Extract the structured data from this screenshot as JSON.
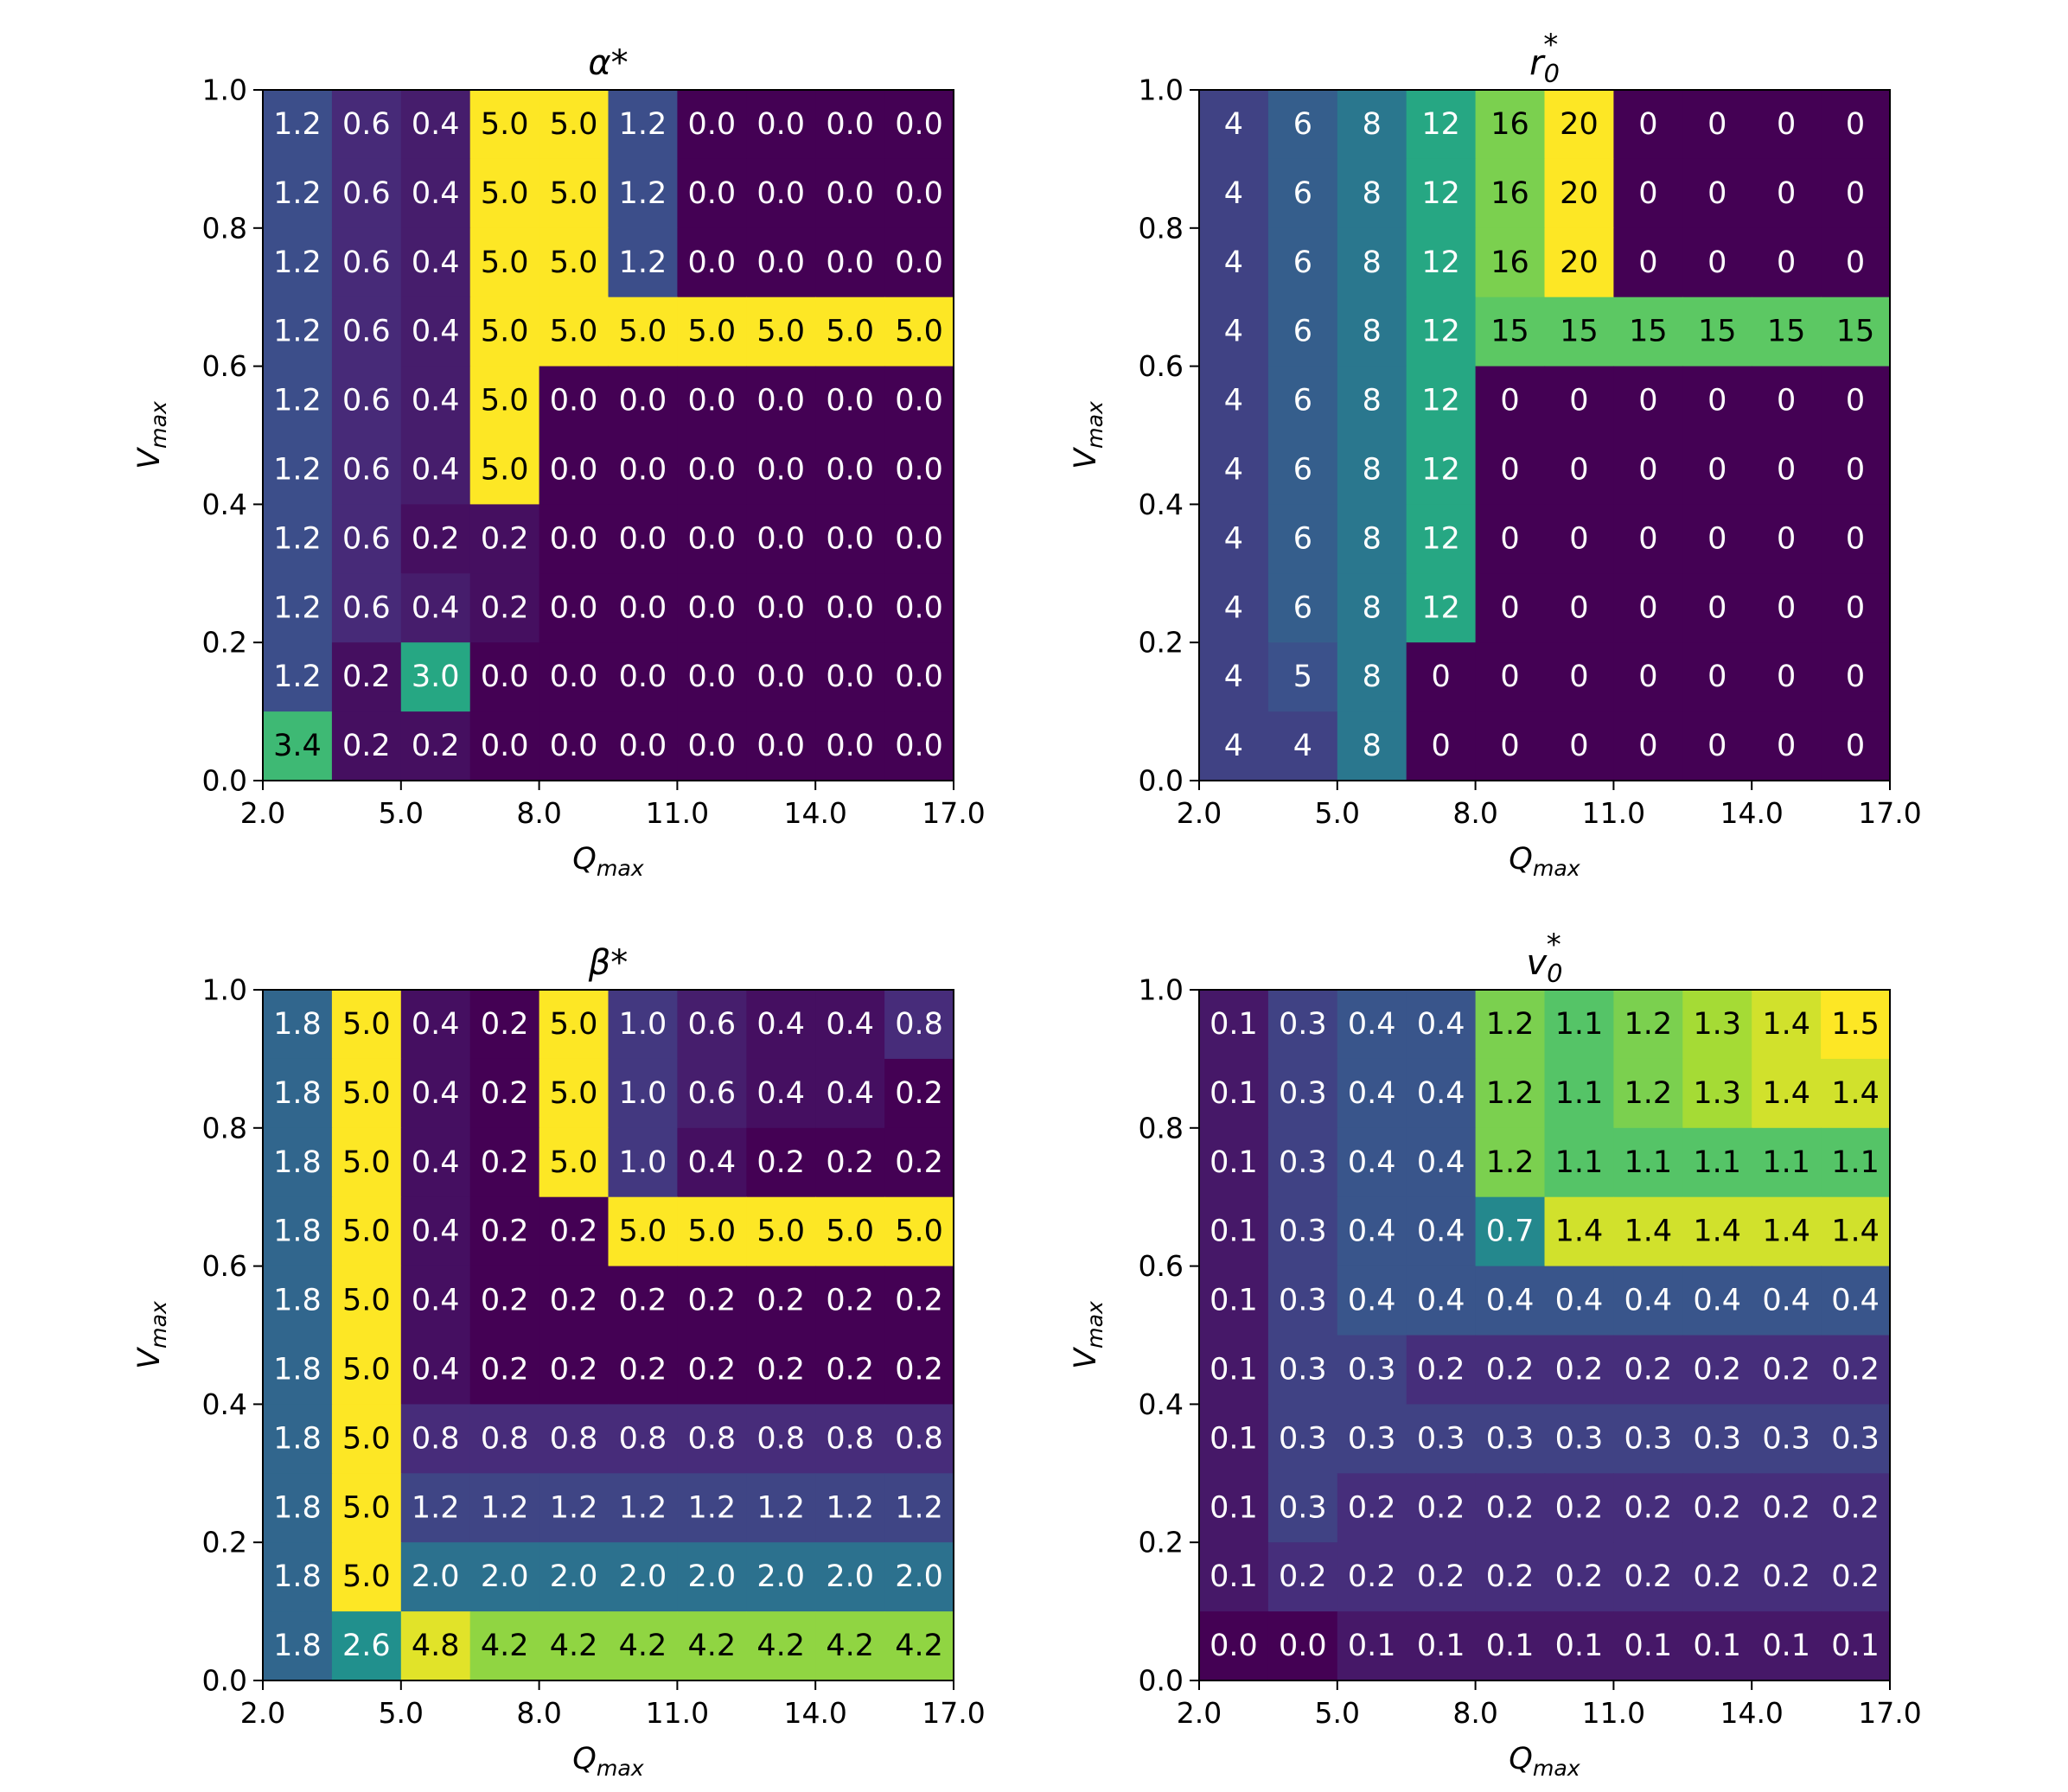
{
  "chart_data": [
    {
      "type": "heatmap",
      "title": "α*",
      "xlabel": "Q",
      "xlabel_sub": "max",
      "ylabel": "V",
      "ylabel_sub": "max",
      "x_range": [
        2.0,
        17.0
      ],
      "y_range": [
        0.0,
        1.0
      ],
      "x_ticks": [
        "2.0",
        "5.0",
        "8.0",
        "11.0",
        "14.0",
        "17.0"
      ],
      "y_ticks": [
        "0.0",
        "0.2",
        "0.4",
        "0.6",
        "0.8",
        "1.0"
      ],
      "vmin": 0.0,
      "vmax": 5.0,
      "colormap": "viridis",
      "rows_top_to_bottom": [
        [
          "1.2",
          "0.6",
          "0.4",
          "5.0",
          "5.0",
          "1.2",
          "0.0",
          "0.0",
          "0.0",
          "0.0"
        ],
        [
          "1.2",
          "0.6",
          "0.4",
          "5.0",
          "5.0",
          "1.2",
          "0.0",
          "0.0",
          "0.0",
          "0.0"
        ],
        [
          "1.2",
          "0.6",
          "0.4",
          "5.0",
          "5.0",
          "1.2",
          "0.0",
          "0.0",
          "0.0",
          "0.0"
        ],
        [
          "1.2",
          "0.6",
          "0.4",
          "5.0",
          "5.0",
          "5.0",
          "5.0",
          "5.0",
          "5.0",
          "5.0"
        ],
        [
          "1.2",
          "0.6",
          "0.4",
          "5.0",
          "0.0",
          "0.0",
          "0.0",
          "0.0",
          "0.0",
          "0.0"
        ],
        [
          "1.2",
          "0.6",
          "0.4",
          "5.0",
          "0.0",
          "0.0",
          "0.0",
          "0.0",
          "0.0",
          "0.0"
        ],
        [
          "1.2",
          "0.6",
          "0.2",
          "0.2",
          "0.0",
          "0.0",
          "0.0",
          "0.0",
          "0.0",
          "0.0"
        ],
        [
          "1.2",
          "0.6",
          "0.4",
          "0.2",
          "0.0",
          "0.0",
          "0.0",
          "0.0",
          "0.0",
          "0.0"
        ],
        [
          "1.2",
          "0.2",
          "3.0",
          "0.0",
          "0.0",
          "0.0",
          "0.0",
          "0.0",
          "0.0",
          "0.0"
        ],
        [
          "3.4",
          "0.2",
          "0.2",
          "0.0",
          "0.0",
          "0.0",
          "0.0",
          "0.0",
          "0.0",
          "0.0"
        ]
      ]
    },
    {
      "type": "heatmap",
      "title": "r",
      "title_sub": "0",
      "title_sup": "*",
      "xlabel": "Q",
      "xlabel_sub": "max",
      "ylabel": "V",
      "ylabel_sub": "max",
      "x_range": [
        2.0,
        17.0
      ],
      "y_range": [
        0.0,
        1.0
      ],
      "x_ticks": [
        "2.0",
        "5.0",
        "8.0",
        "11.0",
        "14.0",
        "17.0"
      ],
      "y_ticks": [
        "0.0",
        "0.2",
        "0.4",
        "0.6",
        "0.8",
        "1.0"
      ],
      "vmin": 0,
      "vmax": 20,
      "colormap": "viridis",
      "rows_top_to_bottom": [
        [
          "4",
          "6",
          "8",
          "12",
          "16",
          "20",
          "0",
          "0",
          "0",
          "0"
        ],
        [
          "4",
          "6",
          "8",
          "12",
          "16",
          "20",
          "0",
          "0",
          "0",
          "0"
        ],
        [
          "4",
          "6",
          "8",
          "12",
          "16",
          "20",
          "0",
          "0",
          "0",
          "0"
        ],
        [
          "4",
          "6",
          "8",
          "12",
          "15",
          "15",
          "15",
          "15",
          "15",
          "15"
        ],
        [
          "4",
          "6",
          "8",
          "12",
          "0",
          "0",
          "0",
          "0",
          "0",
          "0"
        ],
        [
          "4",
          "6",
          "8",
          "12",
          "0",
          "0",
          "0",
          "0",
          "0",
          "0"
        ],
        [
          "4",
          "6",
          "8",
          "12",
          "0",
          "0",
          "0",
          "0",
          "0",
          "0"
        ],
        [
          "4",
          "6",
          "8",
          "12",
          "0",
          "0",
          "0",
          "0",
          "0",
          "0"
        ],
        [
          "4",
          "5",
          "8",
          "0",
          "0",
          "0",
          "0",
          "0",
          "0",
          "0"
        ],
        [
          "4",
          "4",
          "8",
          "0",
          "0",
          "0",
          "0",
          "0",
          "0",
          "0"
        ]
      ]
    },
    {
      "type": "heatmap",
      "title": "β*",
      "xlabel": "Q",
      "xlabel_sub": "max",
      "ylabel": "V",
      "ylabel_sub": "max",
      "x_range": [
        2.0,
        17.0
      ],
      "y_range": [
        0.0,
        1.0
      ],
      "x_ticks": [
        "2.0",
        "5.0",
        "8.0",
        "11.0",
        "14.0",
        "17.0"
      ],
      "y_ticks": [
        "0.0",
        "0.2",
        "0.4",
        "0.6",
        "0.8",
        "1.0"
      ],
      "vmin": 0.2,
      "vmax": 5.0,
      "colormap": "viridis",
      "rows_top_to_bottom": [
        [
          "1.8",
          "5.0",
          "0.4",
          "0.2",
          "5.0",
          "1.0",
          "0.6",
          "0.4",
          "0.4",
          "0.8"
        ],
        [
          "1.8",
          "5.0",
          "0.4",
          "0.2",
          "5.0",
          "1.0",
          "0.6",
          "0.4",
          "0.4",
          "0.2"
        ],
        [
          "1.8",
          "5.0",
          "0.4",
          "0.2",
          "5.0",
          "1.0",
          "0.4",
          "0.2",
          "0.2",
          "0.2"
        ],
        [
          "1.8",
          "5.0",
          "0.4",
          "0.2",
          "0.2",
          "5.0",
          "5.0",
          "5.0",
          "5.0",
          "5.0"
        ],
        [
          "1.8",
          "5.0",
          "0.4",
          "0.2",
          "0.2",
          "0.2",
          "0.2",
          "0.2",
          "0.2",
          "0.2"
        ],
        [
          "1.8",
          "5.0",
          "0.4",
          "0.2",
          "0.2",
          "0.2",
          "0.2",
          "0.2",
          "0.2",
          "0.2"
        ],
        [
          "1.8",
          "5.0",
          "0.8",
          "0.8",
          "0.8",
          "0.8",
          "0.8",
          "0.8",
          "0.8",
          "0.8"
        ],
        [
          "1.8",
          "5.0",
          "1.2",
          "1.2",
          "1.2",
          "1.2",
          "1.2",
          "1.2",
          "1.2",
          "1.2"
        ],
        [
          "1.8",
          "5.0",
          "2.0",
          "2.0",
          "2.0",
          "2.0",
          "2.0",
          "2.0",
          "2.0",
          "2.0"
        ],
        [
          "1.8",
          "2.6",
          "4.8",
          "4.2",
          "4.2",
          "4.2",
          "4.2",
          "4.2",
          "4.2",
          "4.2"
        ]
      ]
    },
    {
      "type": "heatmap",
      "title": "v",
      "title_sub": "0",
      "title_sup": "*",
      "xlabel": "Q",
      "xlabel_sub": "max",
      "ylabel": "V",
      "ylabel_sub": "max",
      "x_range": [
        2.0,
        17.0
      ],
      "y_range": [
        0.0,
        1.0
      ],
      "x_ticks": [
        "2.0",
        "5.0",
        "8.0",
        "11.0",
        "14.0",
        "17.0"
      ],
      "y_ticks": [
        "0.0",
        "0.2",
        "0.4",
        "0.6",
        "0.8",
        "1.0"
      ],
      "vmin": 0.0,
      "vmax": 1.5,
      "colormap": "viridis",
      "rows_top_to_bottom": [
        [
          "0.1",
          "0.3",
          "0.4",
          "0.4",
          "1.2",
          "1.1",
          "1.2",
          "1.3",
          "1.4",
          "1.5"
        ],
        [
          "0.1",
          "0.3",
          "0.4",
          "0.4",
          "1.2",
          "1.1",
          "1.2",
          "1.3",
          "1.4",
          "1.4"
        ],
        [
          "0.1",
          "0.3",
          "0.4",
          "0.4",
          "1.2",
          "1.1",
          "1.1",
          "1.1",
          "1.1",
          "1.1"
        ],
        [
          "0.1",
          "0.3",
          "0.4",
          "0.4",
          "0.7",
          "1.4",
          "1.4",
          "1.4",
          "1.4",
          "1.4"
        ],
        [
          "0.1",
          "0.3",
          "0.4",
          "0.4",
          "0.4",
          "0.4",
          "0.4",
          "0.4",
          "0.4",
          "0.4"
        ],
        [
          "0.1",
          "0.3",
          "0.3",
          "0.2",
          "0.2",
          "0.2",
          "0.2",
          "0.2",
          "0.2",
          "0.2"
        ],
        [
          "0.1",
          "0.3",
          "0.3",
          "0.3",
          "0.3",
          "0.3",
          "0.3",
          "0.3",
          "0.3",
          "0.3"
        ],
        [
          "0.1",
          "0.3",
          "0.2",
          "0.2",
          "0.2",
          "0.2",
          "0.2",
          "0.2",
          "0.2",
          "0.2"
        ],
        [
          "0.1",
          "0.2",
          "0.2",
          "0.2",
          "0.2",
          "0.2",
          "0.2",
          "0.2",
          "0.2",
          "0.2"
        ],
        [
          "0.0",
          "0.0",
          "0.1",
          "0.1",
          "0.1",
          "0.1",
          "0.1",
          "0.1",
          "0.1",
          "0.1"
        ]
      ]
    }
  ]
}
